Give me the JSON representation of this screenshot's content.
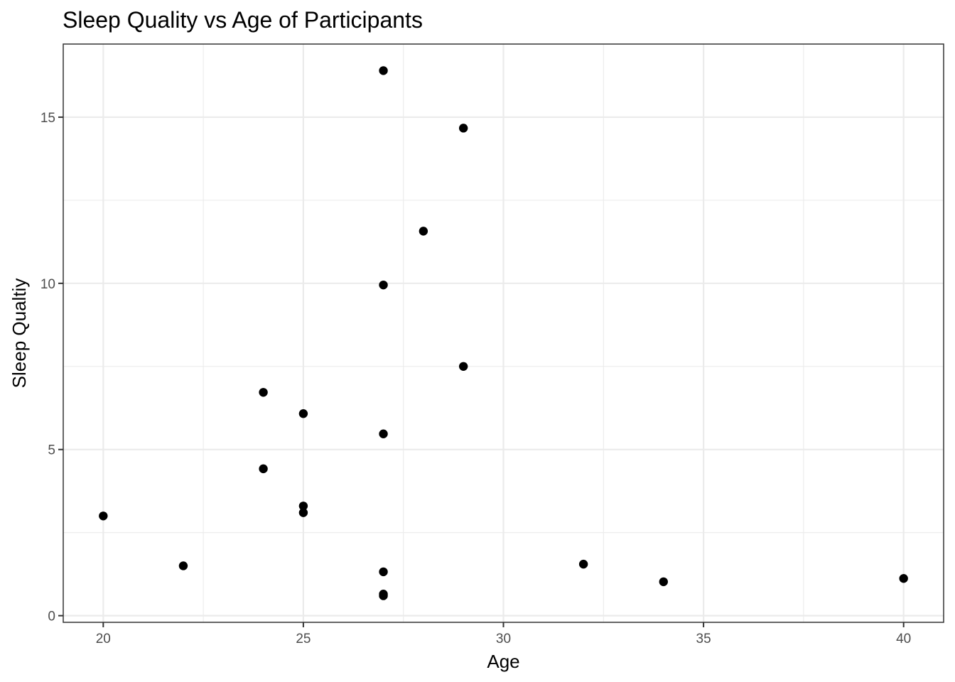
{
  "chart_data": {
    "type": "scatter",
    "title": "Sleep Quality vs Age of Participants",
    "xlabel": "Age",
    "ylabel": "Sleep Qualtiy",
    "xlim": [
      19,
      41
    ],
    "ylim": [
      -0.2,
      17.2
    ],
    "x_ticks": [
      20,
      25,
      30,
      35,
      40
    ],
    "x_tick_labels": [
      "20",
      "25",
      "30",
      "35",
      "40"
    ],
    "x_minor_ticks": [
      22.5,
      27.5,
      32.5,
      37.5
    ],
    "y_ticks": [
      0,
      5,
      10,
      15
    ],
    "y_tick_labels": [
      "0",
      "5",
      "10",
      "15"
    ],
    "y_minor_ticks": [
      2.5,
      7.5,
      12.5
    ],
    "grid": true,
    "legend": "none",
    "point_color": "#000000",
    "points": [
      {
        "x": 27,
        "y": 16.4
      },
      {
        "x": 29,
        "y": 14.67
      },
      {
        "x": 28,
        "y": 11.57
      },
      {
        "x": 27,
        "y": 9.95
      },
      {
        "x": 29,
        "y": 7.5
      },
      {
        "x": 24,
        "y": 6.72
      },
      {
        "x": 25,
        "y": 6.08
      },
      {
        "x": 27,
        "y": 5.47
      },
      {
        "x": 24,
        "y": 4.42
      },
      {
        "x": 25,
        "y": 3.3
      },
      {
        "x": 25,
        "y": 3.1
      },
      {
        "x": 20,
        "y": 3.0
      },
      {
        "x": 22,
        "y": 1.5
      },
      {
        "x": 32,
        "y": 1.55
      },
      {
        "x": 27,
        "y": 1.32
      },
      {
        "x": 40,
        "y": 1.12
      },
      {
        "x": 34,
        "y": 1.02
      },
      {
        "x": 27,
        "y": 0.65
      },
      {
        "x": 27,
        "y": 0.6
      }
    ]
  }
}
